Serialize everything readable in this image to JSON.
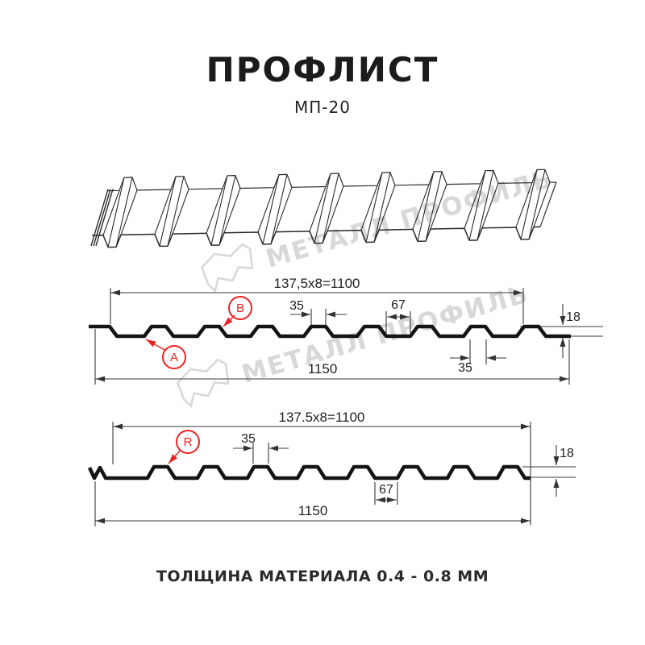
{
  "header": {
    "title": "ПРОФЛИСТ",
    "subtitle": "МП-20"
  },
  "watermark": {
    "text": "МЕТАЛЛ ПРОФИЛЬ"
  },
  "diagram1": {
    "dim_top": "137,5x8=1100",
    "dim_rib_top": "35",
    "dim_valley": "67",
    "dim_height": "18",
    "dim_rib_bottom": "35",
    "dim_total": "1150",
    "label_a": "A",
    "label_b": "B"
  },
  "diagram2": {
    "dim_top": "137.5x8=1100",
    "dim_rib_top": "35",
    "dim_height": "18",
    "dim_valley": "67",
    "dim_total": "1150",
    "label_r": "R"
  },
  "footer": {
    "text": "ТОЛЩИНА МАТЕРИАЛА 0.4 - 0.8 ММ"
  },
  "colors": {
    "accent_red": "#ee2222",
    "profile_line": "#141414",
    "dimension_line": "#3a3a3a",
    "watermark_gray": "#d8d8d8"
  }
}
